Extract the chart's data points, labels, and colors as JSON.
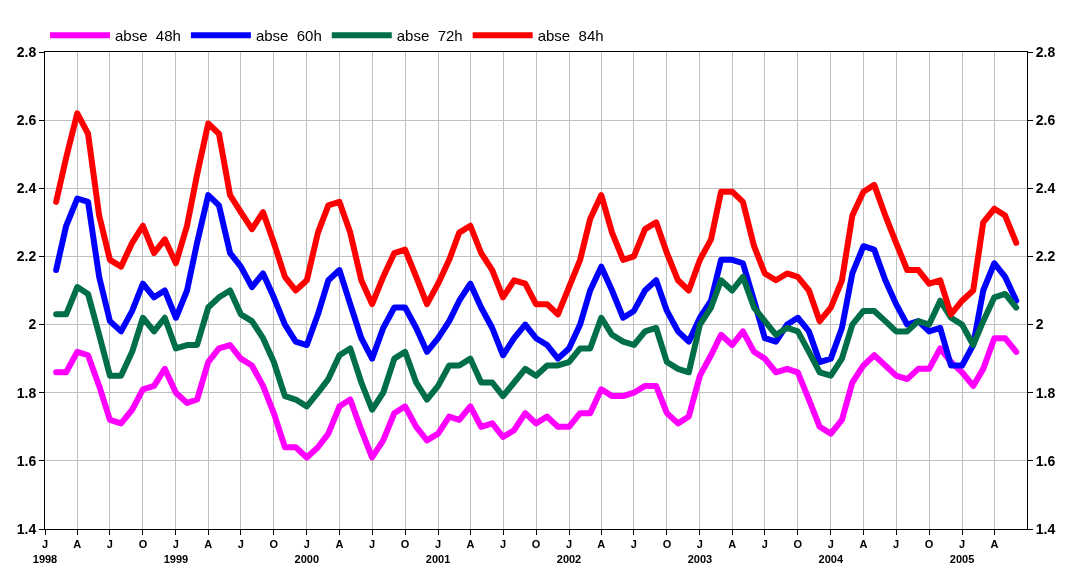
{
  "chart_data": {
    "type": "line",
    "x": [
      "1998-02",
      "1998-03",
      "1998-04",
      "1998-05",
      "1998-06",
      "1998-07",
      "1998-08",
      "1998-09",
      "1998-10",
      "1998-11",
      "1998-12",
      "1999-01",
      "1999-02",
      "1999-03",
      "1999-04",
      "1999-05",
      "1999-06",
      "1999-07",
      "1999-08",
      "1999-09",
      "1999-10",
      "1999-11",
      "1999-12",
      "2000-01",
      "2000-02",
      "2000-03",
      "2000-04",
      "2000-05",
      "2000-06",
      "2000-07",
      "2000-08",
      "2000-09",
      "2000-10",
      "2000-11",
      "2000-12",
      "2001-01",
      "2001-02",
      "2001-03",
      "2001-04",
      "2001-05",
      "2001-06",
      "2001-07",
      "2001-08",
      "2001-09",
      "2001-10",
      "2001-11",
      "2001-12",
      "2002-01",
      "2002-02",
      "2002-03",
      "2002-04",
      "2002-05",
      "2002-06",
      "2002-07",
      "2002-08",
      "2002-09",
      "2002-10",
      "2002-11",
      "2002-12",
      "2003-01",
      "2003-02",
      "2003-03",
      "2003-04",
      "2003-05",
      "2003-06",
      "2003-07",
      "2003-08",
      "2003-09",
      "2003-10",
      "2003-11",
      "2003-12",
      "2004-01",
      "2004-02",
      "2004-03",
      "2004-04",
      "2004-05",
      "2004-06",
      "2004-07",
      "2004-08",
      "2004-09",
      "2004-10",
      "2004-11",
      "2004-12",
      "2005-01",
      "2005-02",
      "2005-03",
      "2005-04",
      "2005-05",
      "2005-06"
    ],
    "series": [
      {
        "name": "abse  48h",
        "color": "#ff00ff",
        "values": [
          1.86,
          1.86,
          1.92,
          1.91,
          1.82,
          1.72,
          1.71,
          1.75,
          1.81,
          1.82,
          1.87,
          1.8,
          1.77,
          1.78,
          1.89,
          1.93,
          1.94,
          1.9,
          1.88,
          1.82,
          1.74,
          1.64,
          1.64,
          1.61,
          1.64,
          1.68,
          1.76,
          1.78,
          1.69,
          1.61,
          1.66,
          1.74,
          1.76,
          1.7,
          1.66,
          1.68,
          1.73,
          1.72,
          1.76,
          1.7,
          1.71,
          1.67,
          1.69,
          1.74,
          1.71,
          1.73,
          1.7,
          1.7,
          1.74,
          1.74,
          1.81,
          1.79,
          1.79,
          1.8,
          1.82,
          1.82,
          1.74,
          1.71,
          1.73,
          1.85,
          1.91,
          1.97,
          1.94,
          1.98,
          1.92,
          1.9,
          1.86,
          1.87,
          1.86,
          1.78,
          1.7,
          1.68,
          1.72,
          1.83,
          1.88,
          1.91,
          1.88,
          1.85,
          1.84,
          1.87,
          1.87,
          1.93,
          1.89,
          1.86,
          1.82,
          1.87,
          1.96,
          1.96,
          1.92
        ]
      },
      {
        "name": "abse  60h",
        "color": "#0000ff",
        "values": [
          2.16,
          2.29,
          2.37,
          2.36,
          2.14,
          2.01,
          1.98,
          2.04,
          2.12,
          2.08,
          2.1,
          2.02,
          2.1,
          2.24,
          2.38,
          2.35,
          2.21,
          2.17,
          2.11,
          2.15,
          2.08,
          2.0,
          1.95,
          1.94,
          2.03,
          2.13,
          2.16,
          2.06,
          1.96,
          1.9,
          1.99,
          2.05,
          2.05,
          1.99,
          1.92,
          1.96,
          2.01,
          2.07,
          2.12,
          2.05,
          1.99,
          1.91,
          1.96,
          2.0,
          1.96,
          1.94,
          1.9,
          1.93,
          2.0,
          2.1,
          2.17,
          2.1,
          2.02,
          2.04,
          2.1,
          2.13,
          2.04,
          1.98,
          1.95,
          2.02,
          2.07,
          2.19,
          2.19,
          2.18,
          2.07,
          1.96,
          1.95,
          2.0,
          2.02,
          1.98,
          1.89,
          1.9,
          1.99,
          2.15,
          2.23,
          2.22,
          2.13,
          2.06,
          2.0,
          2.01,
          1.98,
          1.99,
          1.88,
          1.88,
          1.94,
          2.1,
          2.18,
          2.14,
          2.07
        ]
      },
      {
        "name": "abse  72h",
        "color": "#006e46",
        "values": [
          2.03,
          2.03,
          2.11,
          2.09,
          1.97,
          1.85,
          1.85,
          1.92,
          2.02,
          1.98,
          2.02,
          1.93,
          1.94,
          1.94,
          2.05,
          2.08,
          2.1,
          2.03,
          2.01,
          1.96,
          1.89,
          1.79,
          1.78,
          1.76,
          1.8,
          1.84,
          1.91,
          1.93,
          1.83,
          1.75,
          1.8,
          1.9,
          1.92,
          1.83,
          1.78,
          1.82,
          1.88,
          1.88,
          1.9,
          1.83,
          1.83,
          1.79,
          1.83,
          1.87,
          1.85,
          1.88,
          1.88,
          1.89,
          1.93,
          1.93,
          2.02,
          1.97,
          1.95,
          1.94,
          1.98,
          1.99,
          1.89,
          1.87,
          1.86,
          2.0,
          2.05,
          2.13,
          2.1,
          2.14,
          2.05,
          2.01,
          1.97,
          1.99,
          1.98,
          1.92,
          1.86,
          1.85,
          1.9,
          2.0,
          2.04,
          2.04,
          2.01,
          1.98,
          1.98,
          2.01,
          2.0,
          2.07,
          2.02,
          2.0,
          1.94,
          2.01,
          2.08,
          2.09,
          2.05
        ]
      },
      {
        "name": "abse  84h",
        "color": "#ff0000",
        "values": [
          2.36,
          2.49,
          2.62,
          2.56,
          2.32,
          2.19,
          2.17,
          2.24,
          2.29,
          2.21,
          2.25,
          2.18,
          2.29,
          2.44,
          2.59,
          2.56,
          2.38,
          2.33,
          2.28,
          2.33,
          2.24,
          2.14,
          2.1,
          2.13,
          2.27,
          2.35,
          2.36,
          2.27,
          2.13,
          2.06,
          2.14,
          2.21,
          2.22,
          2.14,
          2.06,
          2.12,
          2.19,
          2.27,
          2.29,
          2.21,
          2.16,
          2.08,
          2.13,
          2.12,
          2.06,
          2.06,
          2.03,
          2.11,
          2.19,
          2.31,
          2.38,
          2.27,
          2.19,
          2.2,
          2.28,
          2.3,
          2.21,
          2.13,
          2.1,
          2.19,
          2.25,
          2.39,
          2.39,
          2.36,
          2.23,
          2.15,
          2.13,
          2.15,
          2.14,
          2.1,
          2.01,
          2.05,
          2.13,
          2.32,
          2.39,
          2.41,
          2.32,
          2.24,
          2.16,
          2.16,
          2.12,
          2.13,
          2.03,
          2.07,
          2.1,
          2.3,
          2.34,
          2.32,
          2.24
        ]
      }
    ],
    "xlim": [
      "1998-01",
      "2005-07"
    ],
    "xticks": [
      {
        "value": "1998-01",
        "label": "J\n1998"
      },
      {
        "value": "1998-04",
        "label": "A"
      },
      {
        "value": "1998-07",
        "label": "J"
      },
      {
        "value": "1998-10",
        "label": "O"
      },
      {
        "value": "1999-01",
        "label": "J\n1999"
      },
      {
        "value": "1999-04",
        "label": "A"
      },
      {
        "value": "1999-07",
        "label": "J"
      },
      {
        "value": "1999-10",
        "label": "O"
      },
      {
        "value": "2000-01",
        "label": "J\n2000"
      },
      {
        "value": "2000-04",
        "label": "A"
      },
      {
        "value": "2000-07",
        "label": "J"
      },
      {
        "value": "2000-10",
        "label": "O"
      },
      {
        "value": "2001-01",
        "label": "J\n2001"
      },
      {
        "value": "2001-04",
        "label": "A"
      },
      {
        "value": "2001-07",
        "label": "J"
      },
      {
        "value": "2001-10",
        "label": "O"
      },
      {
        "value": "2002-01",
        "label": "J\n2002"
      },
      {
        "value": "2002-04",
        "label": "A"
      },
      {
        "value": "2002-07",
        "label": "J"
      },
      {
        "value": "2002-10",
        "label": "O"
      },
      {
        "value": "2003-01",
        "label": "J\n2003"
      },
      {
        "value": "2003-04",
        "label": "A"
      },
      {
        "value": "2003-07",
        "label": "J"
      },
      {
        "value": "2003-10",
        "label": "O"
      },
      {
        "value": "2004-01",
        "label": "J\n2004"
      },
      {
        "value": "2004-04",
        "label": "A"
      },
      {
        "value": "2004-07",
        "label": "J"
      },
      {
        "value": "2004-10",
        "label": "O"
      },
      {
        "value": "2005-01",
        "label": "J\n2005"
      },
      {
        "value": "2005-04",
        "label": "A"
      }
    ],
    "ylim": [
      1.4,
      2.8
    ],
    "yticks": [
      1.4,
      1.6,
      1.8,
      2,
      2.2,
      2.4,
      2.6,
      2.8
    ],
    "y2lim": [
      1.4,
      2.8
    ],
    "y2ticks": [
      1.4,
      1.6,
      1.8,
      2,
      2.2,
      2.4,
      2.6,
      2.8
    ],
    "grid": true,
    "legend": "top left",
    "marker": "none",
    "line_style": "solid"
  }
}
